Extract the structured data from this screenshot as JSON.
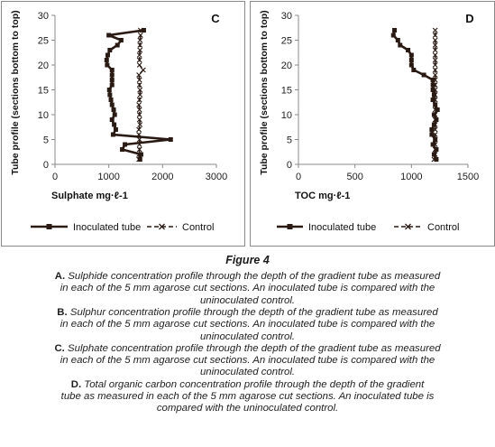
{
  "figure_title": "Figure 4",
  "captions": [
    {
      "letter": "A.",
      "text": "Sulphide concentration profile through the depth of the gradient tube as measured in each of the 5 mm agarose cut sections. An inoculated tube is compared with the uninoculated control."
    },
    {
      "letter": "B.",
      "text": "Sulphur concentration profile through the depth of the gradient tube as measured in each of the 5 mm agarose cut sections. An inoculated tube is compared with the uninoculated control."
    },
    {
      "letter": "C.",
      "text": "Sulphate concentration profile through the depth of the gradient tube as measured in each of the 5 mm agarose cut sections. An inoculated tube is compared with the uninoculated control."
    },
    {
      "letter": "D.",
      "text": "Total organic carbon concentration profile through the depth of the gradient tube as measured in each of the 5 mm agarose cut sections. An inoculated tube is compared with the uninoculated control."
    }
  ],
  "caption_lines": [
    [
      {
        "b": "A."
      },
      {
        "t": " Sulphide concentration profile through the depth of the gradient tube as measured"
      }
    ],
    [
      {
        "t": "in each of the 5 mm agarose cut sections. An inoculated tube is compared with the"
      }
    ],
    [
      {
        "t": "uninoculated control."
      }
    ],
    [
      {
        "b": "B."
      },
      {
        "t": " Sulphur concentration profile through the depth of the gradient tube as measured"
      }
    ],
    [
      {
        "t": "in each of the 5 mm agarose cut sections. An inoculated tube is compared with the"
      }
    ],
    [
      {
        "t": "uninoculated control."
      }
    ],
    [
      {
        "b": "C."
      },
      {
        "t": " Sulphate concentration profile through the depth of the gradient tube as measured"
      }
    ],
    [
      {
        "t": "in each of the 5 mm agarose cut sections. An inoculated tube is compared with the"
      }
    ],
    [
      {
        "t": "uninoculated control."
      }
    ],
    [
      {
        "b": "D."
      },
      {
        "t": " Total organic carbon concentration profile through the depth of the gradient"
      }
    ],
    [
      {
        "t": "tube as measured in each of the 5 mm agarose cut sections. An inoculated tube is"
      }
    ],
    [
      {
        "t": "compared with the uninoculated control."
      }
    ]
  ],
  "chart_data": [
    {
      "panel": "C",
      "type": "line",
      "xlabel": "Sulphate mg·ℓ-1",
      "ylabel": "Tube profile (sections bottom to top)",
      "xlim": [
        0,
        3000
      ],
      "ylim": [
        0,
        30
      ],
      "xticks": [
        0,
        1000,
        2000,
        3000
      ],
      "yticks": [
        0,
        5,
        10,
        15,
        20,
        25,
        30
      ],
      "grid": false,
      "legend_position": "bottom",
      "series": [
        {
          "name": "Inoculated tube",
          "marker": "square",
          "color": "#2a1a14",
          "points": [
            [
              1580,
              1
            ],
            [
              1600,
              2
            ],
            [
              1250,
              3
            ],
            [
              1300,
              4
            ],
            [
              2150,
              5
            ],
            [
              1080,
              6
            ],
            [
              1130,
              7
            ],
            [
              1100,
              8
            ],
            [
              1060,
              9
            ],
            [
              1110,
              10
            ],
            [
              1090,
              11
            ],
            [
              1060,
              12
            ],
            [
              1040,
              13
            ],
            [
              1020,
              14
            ],
            [
              1010,
              15
            ],
            [
              1060,
              16
            ],
            [
              1060,
              17
            ],
            [
              1060,
              18
            ],
            [
              1060,
              19
            ],
            [
              970,
              20
            ],
            [
              960,
              21
            ],
            [
              980,
              22
            ],
            [
              1020,
              23
            ],
            [
              1160,
              24
            ],
            [
              1230,
              25
            ],
            [
              1000,
              26
            ],
            [
              1650,
              27
            ]
          ]
        },
        {
          "name": "Control",
          "marker": "x",
          "color": "#2a1a14",
          "points": [
            [
              1560,
              1
            ],
            [
              1560,
              2
            ],
            [
              1570,
              3
            ],
            [
              1570,
              4
            ],
            [
              1570,
              5
            ],
            [
              1560,
              6
            ],
            [
              1560,
              7
            ],
            [
              1580,
              8
            ],
            [
              1570,
              9
            ],
            [
              1570,
              10
            ],
            [
              1570,
              11
            ],
            [
              1560,
              12
            ],
            [
              1570,
              13
            ],
            [
              1580,
              14
            ],
            [
              1580,
              15
            ],
            [
              1570,
              16
            ],
            [
              1570,
              17
            ],
            [
              1560,
              18
            ],
            [
              1640,
              19
            ],
            [
              1570,
              20
            ],
            [
              1570,
              21
            ],
            [
              1570,
              22
            ],
            [
              1580,
              23
            ],
            [
              1580,
              24
            ],
            [
              1580,
              25
            ],
            [
              1590,
              26
            ],
            [
              1590,
              27
            ]
          ]
        }
      ]
    },
    {
      "panel": "D",
      "type": "line",
      "xlabel": "TOC mg·ℓ-1",
      "ylabel": "Tube profile (sections bottom to top)",
      "xlim": [
        0,
        1500
      ],
      "ylim": [
        0,
        30
      ],
      "xticks": [
        0,
        500,
        1000,
        1500
      ],
      "yticks": [
        0,
        5,
        10,
        15,
        20,
        25,
        30
      ],
      "grid": false,
      "legend_position": "bottom",
      "series": [
        {
          "name": "Inoculated tube",
          "marker": "square",
          "color": "#2a1a14",
          "points": [
            [
              1220,
              1
            ],
            [
              1200,
              2
            ],
            [
              1220,
              3
            ],
            [
              1190,
              4
            ],
            [
              1210,
              5
            ],
            [
              1180,
              6
            ],
            [
              1180,
              7
            ],
            [
              1200,
              8
            ],
            [
              1220,
              9
            ],
            [
              1200,
              10
            ],
            [
              1230,
              11
            ],
            [
              1210,
              12
            ],
            [
              1190,
              13
            ],
            [
              1200,
              14
            ],
            [
              1190,
              15
            ],
            [
              1190,
              16
            ],
            [
              1190,
              17
            ],
            [
              1110,
              18
            ],
            [
              1020,
              19
            ],
            [
              1000,
              20
            ],
            [
              1000,
              21
            ],
            [
              1000,
              22
            ],
            [
              970,
              23
            ],
            [
              900,
              24
            ],
            [
              880,
              25
            ],
            [
              840,
              26
            ],
            [
              850,
              27
            ]
          ]
        },
        {
          "name": "Control",
          "marker": "x",
          "color": "#2a1a14",
          "points": [
            [
              1200,
              1
            ],
            [
              1210,
              2
            ],
            [
              1210,
              3
            ],
            [
              1210,
              4
            ],
            [
              1210,
              5
            ],
            [
              1210,
              6
            ],
            [
              1210,
              7
            ],
            [
              1210,
              8
            ],
            [
              1210,
              9
            ],
            [
              1210,
              10
            ],
            [
              1210,
              11
            ],
            [
              1210,
              12
            ],
            [
              1210,
              13
            ],
            [
              1210,
              14
            ],
            [
              1210,
              15
            ],
            [
              1210,
              16
            ],
            [
              1210,
              17
            ],
            [
              1210,
              18
            ],
            [
              1210,
              19
            ],
            [
              1210,
              20
            ],
            [
              1210,
              21
            ],
            [
              1210,
              22
            ],
            [
              1210,
              23
            ],
            [
              1210,
              24
            ],
            [
              1210,
              25
            ],
            [
              1210,
              26
            ],
            [
              1210,
              27
            ]
          ]
        }
      ]
    }
  ]
}
